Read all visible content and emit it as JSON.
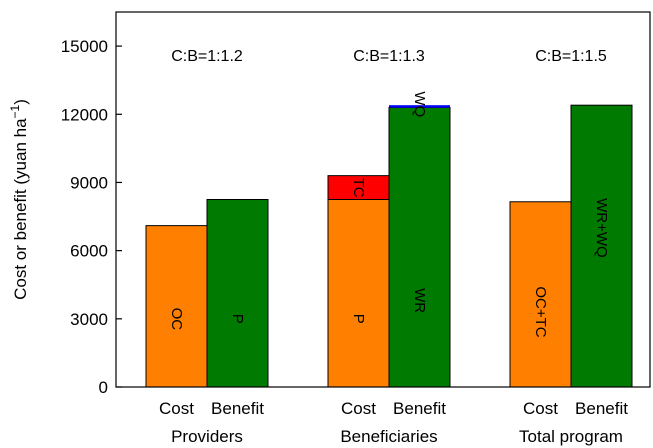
{
  "chart_data": {
    "type": "bar",
    "ylabel": "Cost or benefit (yuan ha",
    "ylabel_sup": "−1",
    "ylabel_close": ")",
    "ylim": [
      0,
      16500
    ],
    "yticks": [
      "0",
      "3000",
      "6000",
      "9000",
      "12000",
      "15000"
    ],
    "ytick_values": [
      0,
      3000,
      6000,
      9000,
      12000,
      15000
    ],
    "groups": [
      {
        "label": "Providers",
        "ratio": "C:B=1:1.2",
        "bars": [
          {
            "label": "Cost",
            "segments": [
              {
                "name": "OC",
                "value": 7100,
                "color": "#ff8000"
              }
            ]
          },
          {
            "label": "Benefit",
            "segments": [
              {
                "name": "P",
                "value": 8250,
                "color": "#007a00"
              }
            ]
          }
        ]
      },
      {
        "label": "Beneficiaries",
        "ratio": "C:B=1:1.3",
        "bars": [
          {
            "label": "Cost",
            "segments": [
              {
                "name": "P",
                "value": 8250,
                "color": "#ff8000"
              },
              {
                "name": "TC",
                "value": 1050,
                "color": "#ff0000"
              }
            ]
          },
          {
            "label": "Benefit",
            "segments": [
              {
                "name": "WR",
                "value": 12300,
                "color": "#007a00"
              },
              {
                "name": "WQ",
                "value": 100,
                "color": "#0000ff",
                "label_value": 12000
              }
            ]
          }
        ]
      },
      {
        "label": "Total program",
        "ratio": "C:B=1:1.5",
        "bars": [
          {
            "label": "Cost",
            "segments": [
              {
                "name": "OC+TC",
                "value": 8150,
                "color": "#ff8000"
              }
            ]
          },
          {
            "label": "Benefit",
            "segments": [
              {
                "name": "WR+WQ",
                "value": 12400,
                "color": "#007a00"
              }
            ]
          }
        ]
      }
    ]
  }
}
